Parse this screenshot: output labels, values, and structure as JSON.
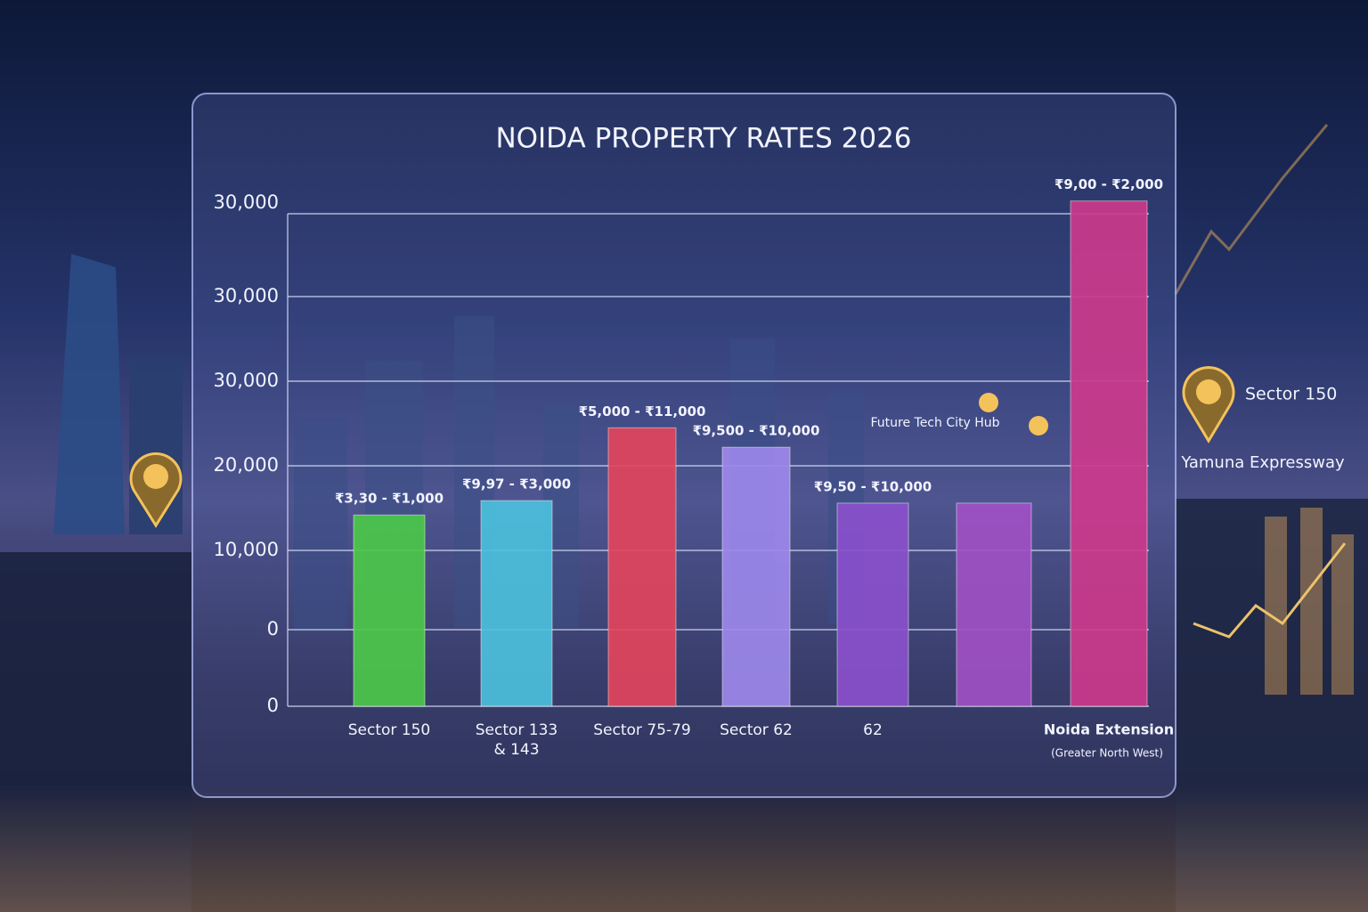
{
  "chart_data": {
    "type": "bar",
    "title": "NOIDA PROPERTY RATES 2026",
    "categories": [
      "Sector 150",
      "Sector 133 & 143",
      "Sector 75-79",
      "Sector 62",
      "62",
      null,
      "Noida Extension"
    ],
    "category_notes": [
      null,
      null,
      null,
      null,
      null,
      null,
      "(Greater North West)"
    ],
    "values": [
      14200,
      15900,
      24500,
      22200,
      15600,
      15600,
      51300
    ],
    "bar_labels": [
      "₹3,30 - ₹1,000",
      "₹9,97 - ₹3,000",
      "₹5,000 - ₹11,000",
      "₹9,500 - ₹10,000",
      "₹9,50 - ₹10,000",
      null,
      "₹9,00 - ₹2,000"
    ],
    "colors": [
      "#4cc84a",
      "#4cc0dc",
      "#e2445c",
      "#9c88ea",
      "#8a50cc",
      "#a050c4",
      "#cc3a8c"
    ],
    "ylim": [
      -8400,
      54000
    ],
    "y_axis_labels": [
      "30,000",
      "30,000",
      "30,000",
      "20,000",
      "10,000",
      "0",
      "0"
    ],
    "grid": true,
    "annotations": [
      "Future Tech City Hub",
      "Sector 150",
      "Yamuna Expressway"
    ]
  }
}
